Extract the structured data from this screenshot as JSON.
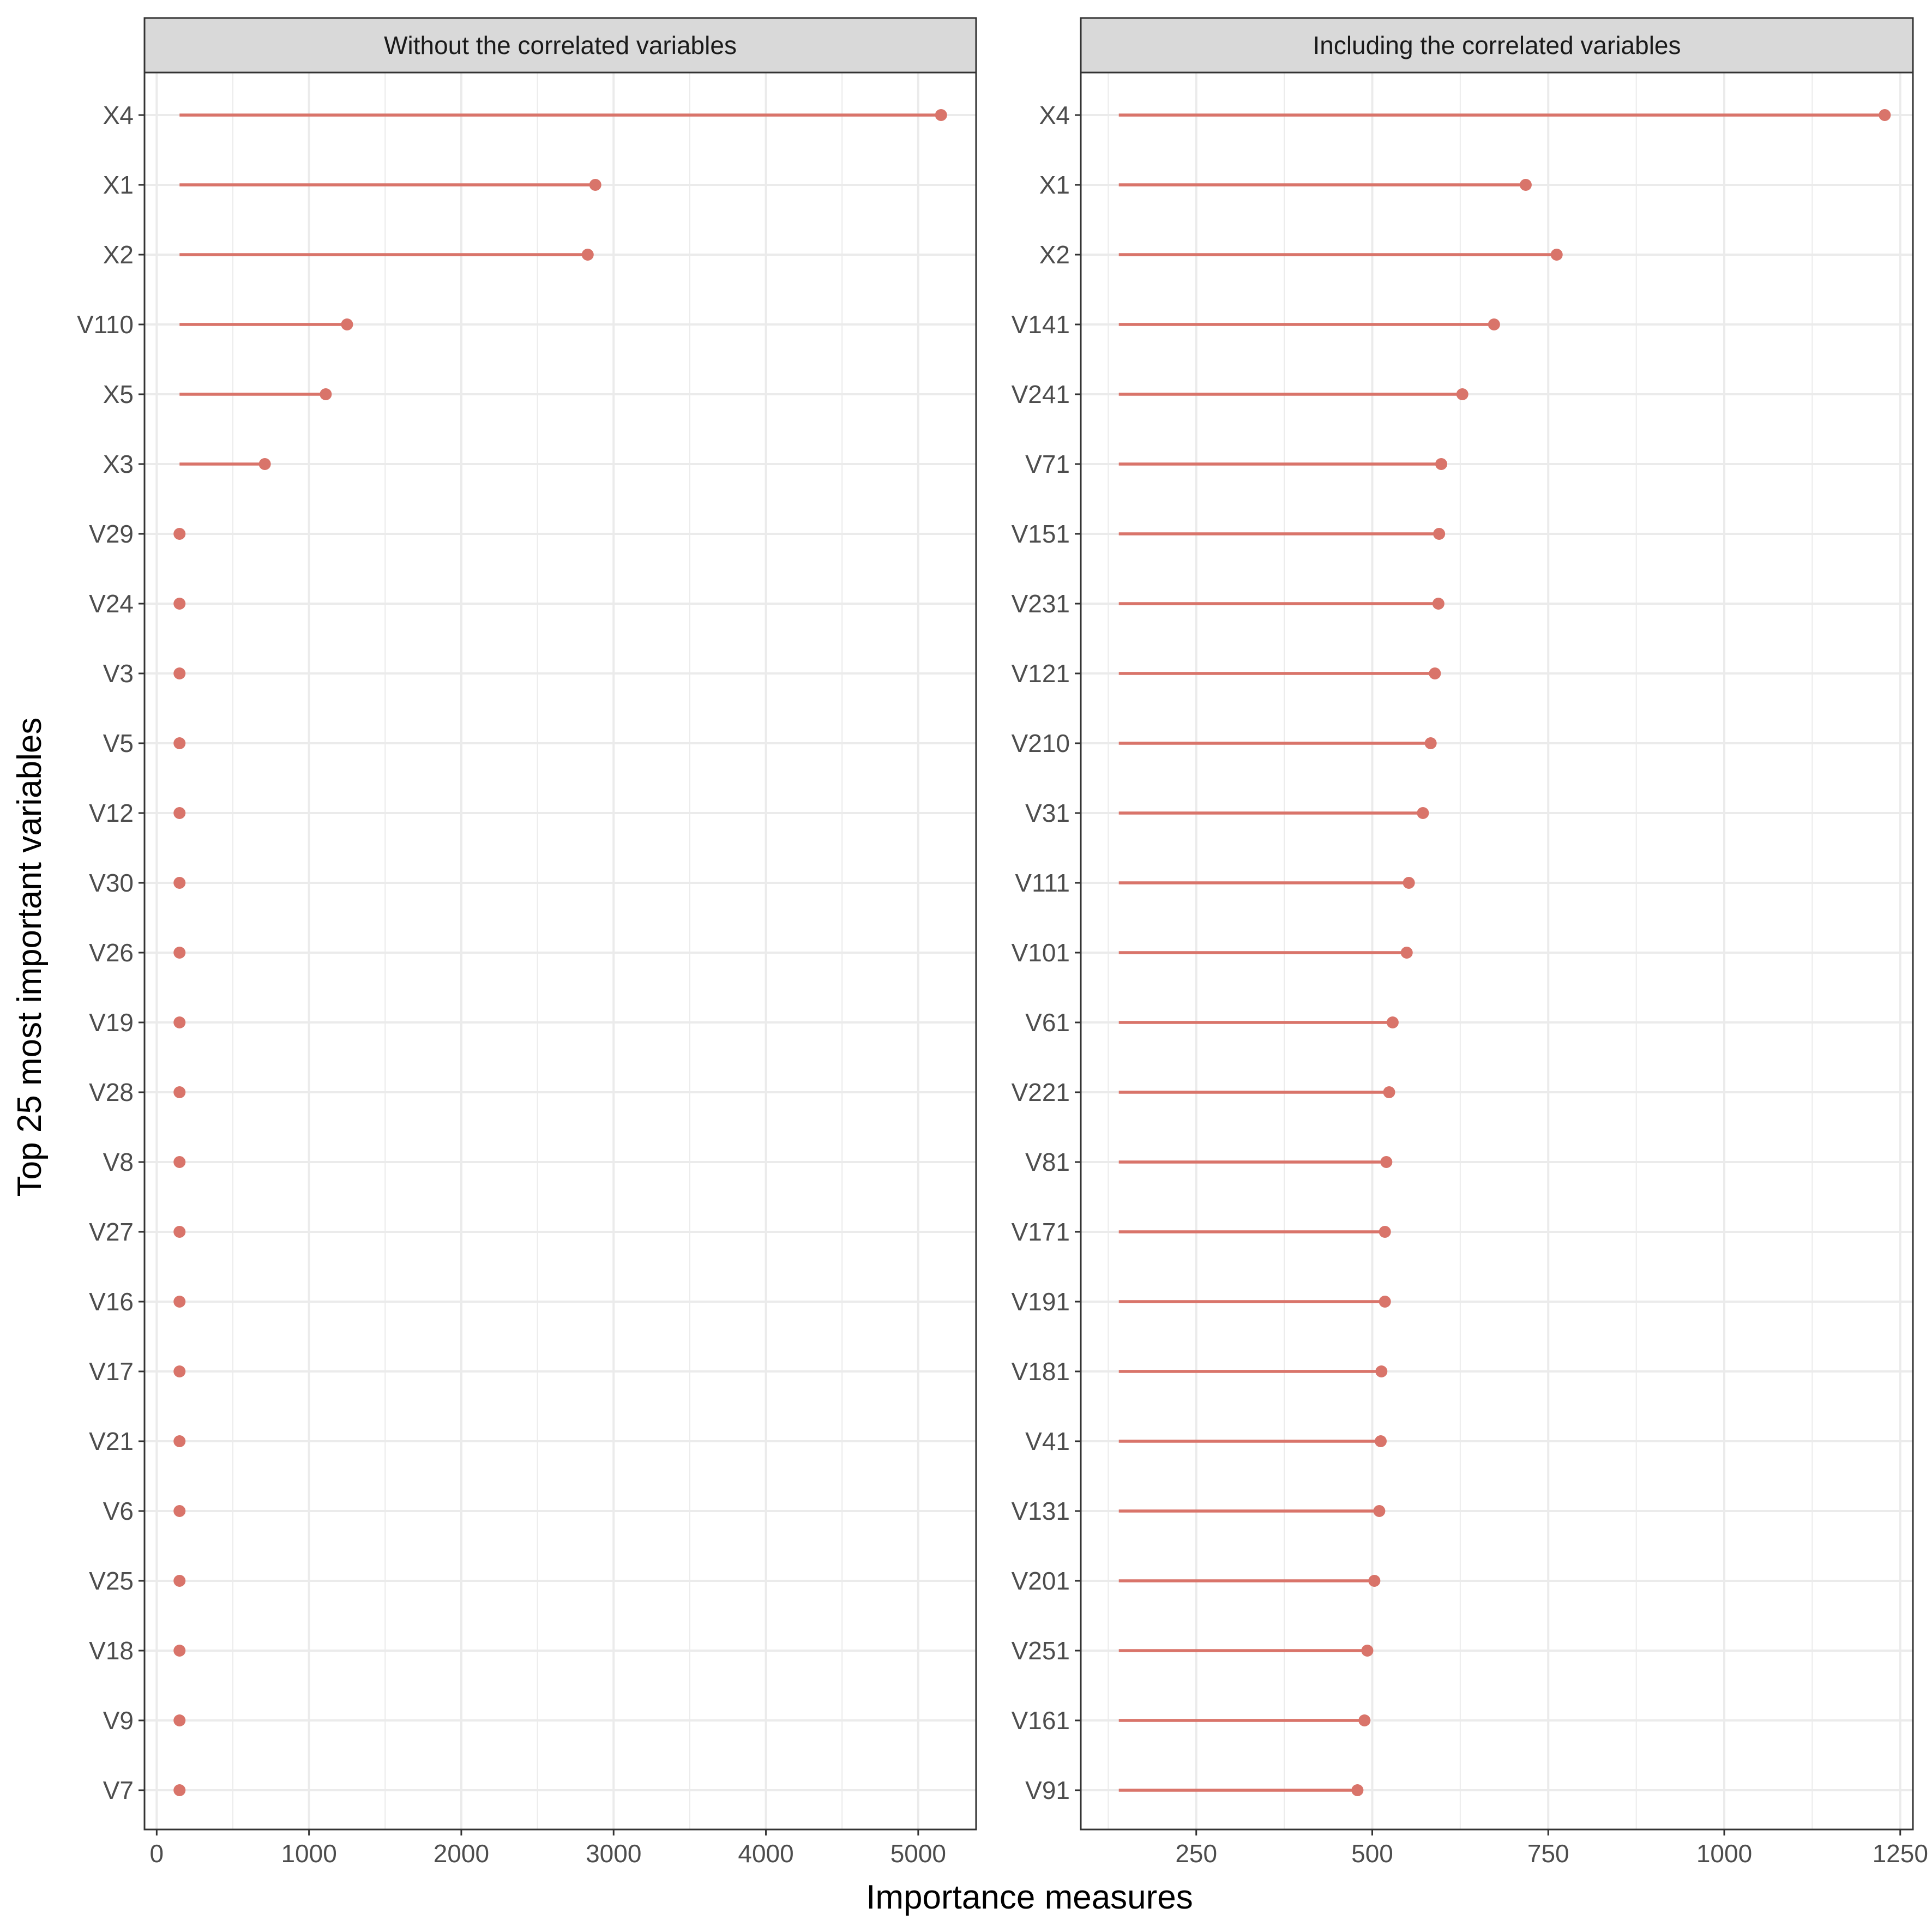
{
  "chart_data": [
    {
      "type": "lollipop",
      "panel_title": "Without the correlated variables",
      "ylabel": "Top 25 most important variables",
      "xlabel": "Importance measures",
      "xlim": [
        -80,
        5380
      ],
      "xticks": [
        0,
        1000,
        2000,
        3000,
        4000,
        5000
      ],
      "xtick_labels": [
        "0",
        "1000",
        "2000",
        "3000",
        "4000",
        "5000"
      ],
      "baseline": 150,
      "categories": [
        "X4",
        "X1",
        "X2",
        "V110",
        "X5",
        "X3",
        "V29",
        "V24",
        "V3",
        "V5",
        "V12",
        "V30",
        "V26",
        "V19",
        "V28",
        "V8",
        "V27",
        "V16",
        "V17",
        "V21",
        "V6",
        "V25",
        "V18",
        "V9",
        "V7"
      ],
      "values": [
        5150,
        2880,
        2830,
        1250,
        1110,
        710,
        150,
        150,
        150,
        150,
        150,
        150,
        150,
        150,
        150,
        150,
        150,
        150,
        150,
        150,
        150,
        150,
        150,
        150,
        150
      ],
      "grid": true,
      "color": "#d9746a"
    },
    {
      "type": "lollipop",
      "panel_title": "Including the correlated variables",
      "xlim": [
        86,
        1268
      ],
      "xticks": [
        250,
        500,
        750,
        1000,
        1250
      ],
      "xtick_labels": [
        "250",
        "500",
        "750",
        "1000",
        "1250"
      ],
      "baseline": 140,
      "categories": [
        "X4",
        "X1",
        "X2",
        "V141",
        "V241",
        "V71",
        "V151",
        "V231",
        "V121",
        "V210",
        "V31",
        "V111",
        "V101",
        "V61",
        "V221",
        "V81",
        "V171",
        "V191",
        "V181",
        "V41",
        "V131",
        "V201",
        "V251",
        "V161",
        "V91"
      ],
      "values": [
        1228,
        718,
        762,
        673,
        628,
        598,
        595,
        594,
        589,
        583,
        572,
        552,
        549,
        529,
        524,
        520,
        518,
        518,
        513,
        512,
        510,
        503,
        493,
        489,
        479
      ],
      "grid": true,
      "color": "#d9746a"
    }
  ]
}
